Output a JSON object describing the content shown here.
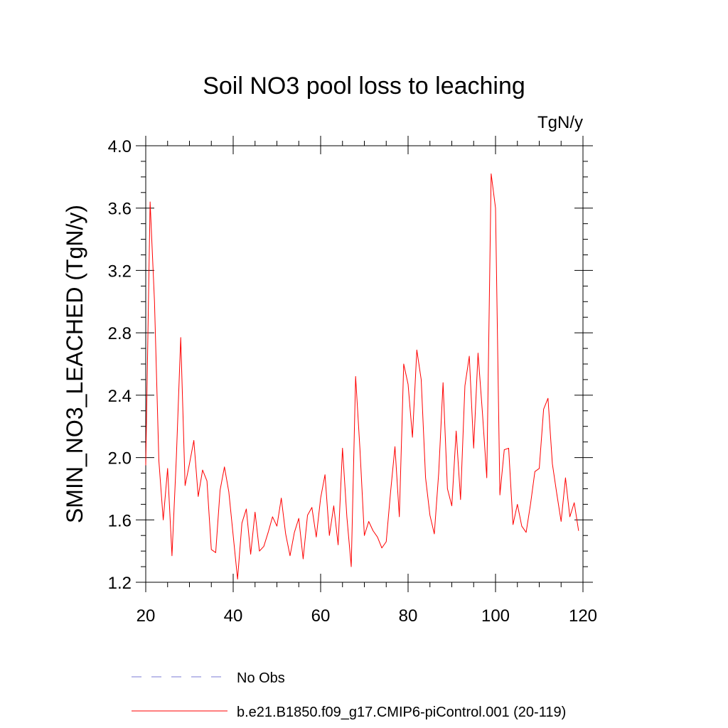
{
  "chart_data": {
    "type": "line",
    "title": "Soil NO3 pool loss to leaching",
    "units": "TgN/y",
    "xlabel": "",
    "ylabel": "SMIN_NO3_LEACHED  (TgN/y)",
    "xlim": [
      20,
      120
    ],
    "ylim": [
      1.2,
      4.0
    ],
    "x_ticks": [
      20,
      40,
      60,
      80,
      100,
      120
    ],
    "x_tick_labels": [
      "20",
      "40",
      "60",
      "80",
      "100",
      "120"
    ],
    "y_ticks": [
      1.2,
      1.6,
      2.0,
      2.4,
      2.8,
      3.2,
      3.6,
      4.0
    ],
    "y_tick_labels": [
      "1.2",
      "1.6",
      "2.0",
      "2.4",
      "2.8",
      "3.2",
      "3.6",
      "4.0"
    ],
    "grid": false,
    "legend_position": "bottom",
    "series": [
      {
        "name": "No Obs",
        "color": "#7b7bd6",
        "dash": "dashed",
        "x": [],
        "values": []
      },
      {
        "name": "b.e21.B1850.f09_g17.CMIP6-piControl.001 (20-119)",
        "color": "#ff0000",
        "dash": "solid",
        "x": [
          20,
          21,
          22,
          23,
          24,
          25,
          26,
          27,
          28,
          29,
          30,
          31,
          32,
          33,
          34,
          35,
          36,
          37,
          38,
          39,
          40,
          41,
          42,
          43,
          44,
          45,
          46,
          47,
          48,
          49,
          50,
          51,
          52,
          53,
          54,
          55,
          56,
          57,
          58,
          59,
          60,
          61,
          62,
          63,
          64,
          65,
          66,
          67,
          68,
          69,
          70,
          71,
          72,
          73,
          74,
          75,
          76,
          77,
          78,
          79,
          80,
          81,
          82,
          83,
          84,
          85,
          86,
          87,
          88,
          89,
          90,
          91,
          92,
          93,
          94,
          95,
          96,
          97,
          98,
          99,
          100,
          101,
          102,
          103,
          104,
          105,
          106,
          107,
          108,
          109,
          110,
          111,
          112,
          113,
          114,
          115,
          116,
          117,
          118,
          119
        ],
        "values": [
          1.95,
          3.64,
          3.0,
          1.98,
          1.6,
          1.93,
          1.37,
          2.0,
          2.77,
          1.82,
          1.96,
          2.11,
          1.75,
          1.92,
          1.85,
          1.41,
          1.39,
          1.79,
          1.94,
          1.78,
          1.5,
          1.22,
          1.58,
          1.67,
          1.38,
          1.65,
          1.4,
          1.43,
          1.52,
          1.62,
          1.56,
          1.74,
          1.51,
          1.37,
          1.52,
          1.61,
          1.35,
          1.63,
          1.68,
          1.49,
          1.74,
          1.89,
          1.5,
          1.69,
          1.44,
          2.06,
          1.62,
          1.3,
          2.52,
          2.05,
          1.5,
          1.59,
          1.53,
          1.49,
          1.42,
          1.46,
          1.78,
          2.07,
          1.62,
          2.6,
          2.47,
          2.13,
          2.69,
          2.5,
          1.87,
          1.63,
          1.51,
          1.9,
          2.48,
          1.8,
          1.69,
          2.17,
          1.73,
          2.46,
          2.65,
          2.06,
          2.67,
          2.29,
          1.87,
          3.82,
          3.6,
          1.76,
          2.05,
          2.06,
          1.57,
          1.7,
          1.56,
          1.52,
          1.7,
          1.91,
          1.93,
          2.31,
          2.38,
          1.96,
          1.77,
          1.59,
          1.87,
          1.62,
          1.71,
          1.53
        ]
      }
    ]
  }
}
